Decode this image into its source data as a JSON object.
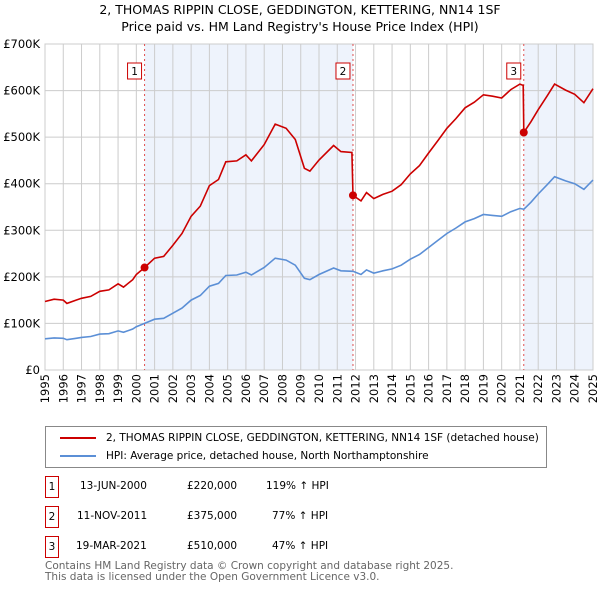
{
  "chart_data": {
    "type": "line",
    "title": "2, THOMAS RIPPIN CLOSE, GEDDINGTON, KETTERING, NN14 1SF",
    "subtitle": "Price paid vs. HM Land Registry's House Price Index (HPI)",
    "xlim": [
      1995,
      2025
    ],
    "ylim": [
      0,
      700000
    ],
    "y_ticks": [
      {
        "v": 0,
        "label": "£0"
      },
      {
        "v": 100000,
        "label": "£100K"
      },
      {
        "v": 200000,
        "label": "£200K"
      },
      {
        "v": 300000,
        "label": "£300K"
      },
      {
        "v": 400000,
        "label": "£400K"
      },
      {
        "v": 500000,
        "label": "£500K"
      },
      {
        "v": 600000,
        "label": "£600K"
      },
      {
        "v": 700000,
        "label": "£700K"
      }
    ],
    "x_ticks": [
      "1995",
      "1996",
      "1997",
      "1998",
      "1999",
      "2000",
      "2001",
      "2002",
      "2003",
      "2004",
      "2005",
      "2006",
      "2007",
      "2008",
      "2009",
      "2010",
      "2011",
      "2012",
      "2013",
      "2014",
      "2015",
      "2016",
      "2017",
      "2018",
      "2019",
      "2020",
      "2021",
      "2022",
      "2023",
      "2024",
      "2025"
    ],
    "grid": true,
    "series": [
      {
        "name": "2, THOMAS RIPPIN CLOSE, GEDDINGTON, KETTERING, NN14 1SF (detached house)",
        "color": "#cc0000",
        "x": [
          1995,
          1995.5,
          1996,
          1996.2,
          1996.7,
          1997,
          1997.5,
          1998,
          1998.5,
          1999,
          1999.3,
          1999.8,
          2000,
          2000.45,
          2001,
          2001.5,
          2002,
          2002.5,
          2003,
          2003.5,
          2004,
          2004.5,
          2004.9,
          2005.5,
          2006,
          2006.3,
          2007,
          2007.6,
          2008.2,
          2008.7,
          2009.2,
          2009.5,
          2010,
          2010.8,
          2011.2,
          2011.8,
          2011.86,
          2012.3,
          2012.6,
          2013,
          2013.5,
          2014,
          2014.5,
          2015,
          2015.5,
          2016,
          2016.5,
          2017,
          2017.5,
          2018,
          2018.5,
          2019,
          2019.5,
          2020,
          2020.5,
          2021,
          2021.18,
          2021.21,
          2021.6,
          2022,
          2022.5,
          2022.9,
          2023.5,
          2024,
          2024.5,
          2025
        ],
        "values": [
          147000,
          152000,
          150000,
          143000,
          150000,
          154000,
          158000,
          169000,
          172000,
          185000,
          178000,
          194000,
          205000,
          220000,
          240000,
          244000,
          268000,
          293000,
          330000,
          352000,
          396000,
          409000,
          447000,
          449000,
          462000,
          449000,
          484000,
          528000,
          519000,
          495000,
          433000,
          427000,
          451000,
          482000,
          469000,
          467000,
          375000,
          363000,
          381000,
          368000,
          377000,
          384000,
          398000,
          421000,
          439000,
          466000,
          492000,
          519000,
          540000,
          563000,
          575000,
          591000,
          588000,
          584000,
          602000,
          614000,
          611000,
          510000,
          533000,
          559000,
          589000,
          614000,
          601000,
          592000,
          574000,
          604000
        ]
      },
      {
        "name": "HPI: Average price, detached house, North Northamptonshire",
        "color": "#5b8fd6",
        "x": [
          1995,
          1995.5,
          1996,
          1996.2,
          1996.7,
          1997,
          1997.5,
          1998,
          1998.5,
          1999,
          1999.3,
          1999.8,
          2000,
          2000.45,
          2001,
          2001.5,
          2002,
          2002.5,
          2003,
          2003.5,
          2004,
          2004.5,
          2004.9,
          2005.5,
          2006,
          2006.3,
          2007,
          2007.6,
          2008.2,
          2008.7,
          2009.2,
          2009.5,
          2010,
          2010.8,
          2011.2,
          2011.86,
          2012.3,
          2012.6,
          2013,
          2013.5,
          2014,
          2014.5,
          2015,
          2015.5,
          2016,
          2016.5,
          2017,
          2017.5,
          2018,
          2018.5,
          2019,
          2019.5,
          2020,
          2020.5,
          2021,
          2021.21,
          2021.6,
          2022,
          2022.5,
          2022.9,
          2023.5,
          2024,
          2024.5,
          2025
        ],
        "values": [
          67000,
          69000,
          68000,
          65000,
          68000,
          70000,
          72000,
          77000,
          78000,
          84000,
          81000,
          88000,
          93000,
          100000,
          109000,
          111000,
          122000,
          133000,
          150000,
          160000,
          180000,
          186000,
          203000,
          204000,
          210000,
          204000,
          220000,
          240000,
          236000,
          225000,
          197000,
          194000,
          205000,
          219000,
          213000,
          212000,
          205000,
          215000,
          208000,
          213000,
          217000,
          225000,
          238000,
          248000,
          263000,
          278000,
          293000,
          305000,
          318000,
          325000,
          334000,
          332000,
          330000,
          340000,
          347000,
          345000,
          360000,
          378000,
          398000,
          415000,
          406000,
          400000,
          388000,
          408000
        ]
      }
    ],
    "sales": [
      {
        "label": "1",
        "x": 2000.45,
        "price": 220000,
        "date": "13-JUN-2000",
        "price_text": "£220,000",
        "hpi_text": "119% ↑ HPI"
      },
      {
        "label": "2",
        "x": 2011.86,
        "price": 375000,
        "date": "11-NOV-2011",
        "price_text": "£375,000",
        "hpi_text": "77% ↑ HPI"
      },
      {
        "label": "3",
        "x": 2021.21,
        "price": 510000,
        "date": "19-MAR-2021",
        "price_text": "£510,000",
        "hpi_text": "47% ↑ HPI"
      }
    ],
    "shaded_ranges": [
      [
        2000.45,
        2011.86
      ],
      [
        2021.21,
        2025
      ]
    ]
  },
  "footer": [
    "Contains HM Land Registry data © Crown copyright and database right 2025.",
    "This data is licensed under the Open Government Licence v3.0."
  ]
}
